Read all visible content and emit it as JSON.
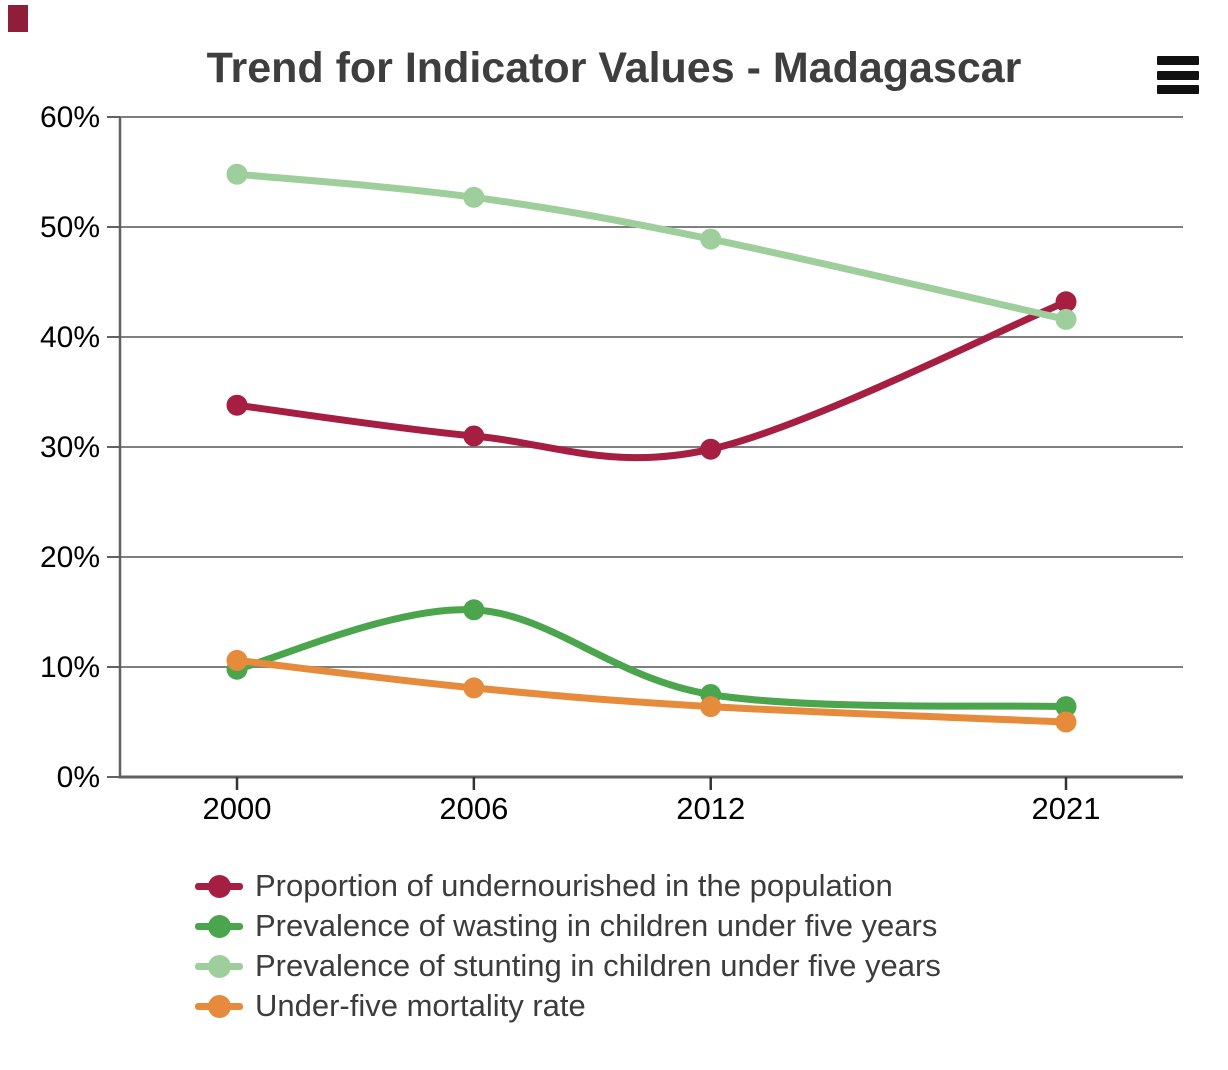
{
  "header": {
    "title": "Trend for Indicator Values - Madagascar",
    "menu_icon": "hamburger-menu-icon"
  },
  "decorations": {
    "corner_mark_color": "#8f1e3b"
  },
  "colors": {
    "title_text": "#3e3e3e",
    "legend_text": "#3c3c3c",
    "gridline": "#7f7f7f",
    "axis_line": "#616161",
    "tick_label": "#000000"
  },
  "chart_data": {
    "type": "line",
    "title": "Trend for Indicator Values - Madagascar",
    "x": [
      2000,
      2006,
      2012,
      2021
    ],
    "x_tick_labels": [
      "2000",
      "2006",
      "2012",
      "2021"
    ],
    "y_tick_labels": [
      "0%",
      "10%",
      "20%",
      "30%",
      "40%",
      "50%",
      "60%"
    ],
    "ylim": [
      0,
      60
    ],
    "y_step": 10,
    "y_unit": "%",
    "xlabel": "",
    "ylabel": "",
    "grid": "horizontal",
    "line_style": "smooth-spline-with-point-markers",
    "legend_position": "bottom-left",
    "series": [
      {
        "name": "Proportion of undernourished in the population",
        "color": "#a61e42",
        "values": [
          33.8,
          31.0,
          29.8,
          43.2
        ]
      },
      {
        "name": "Prevalence of wasting in children under five years",
        "color": "#4aa54c",
        "values": [
          9.8,
          15.2,
          7.5,
          6.4
        ]
      },
      {
        "name": "Prevalence of stunting in children under five years",
        "color": "#9dce9b",
        "values": [
          54.8,
          52.7,
          48.9,
          41.6
        ]
      },
      {
        "name": "Under-five mortality rate",
        "color": "#e68a3c",
        "values": [
          10.6,
          8.1,
          6.4,
          5.0
        ]
      }
    ]
  }
}
